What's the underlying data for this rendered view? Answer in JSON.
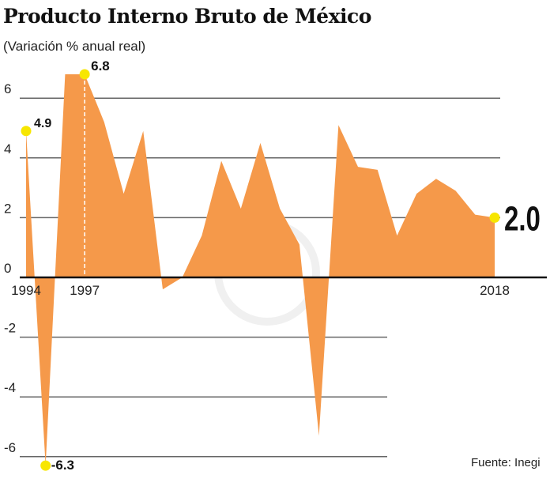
{
  "chart_data": {
    "type": "area",
    "title": "Producto Interno Bruto de México",
    "subtitle": "(Variación % anual real)",
    "source": "Fuente: Inegi",
    "x": [
      1994,
      1995,
      1996,
      1997,
      1998,
      1999,
      2000,
      2001,
      2002,
      2003,
      2004,
      2005,
      2006,
      2007,
      2008,
      2009,
      2010,
      2011,
      2012,
      2013,
      2014,
      2015,
      2016,
      2017,
      2018
    ],
    "values": [
      4.9,
      -6.3,
      6.8,
      6.8,
      5.2,
      2.8,
      4.9,
      -0.4,
      0.0,
      1.4,
      3.9,
      2.3,
      4.5,
      2.3,
      1.1,
      -5.3,
      5.1,
      3.7,
      3.6,
      1.4,
      2.8,
      3.3,
      2.9,
      2.1,
      2.0
    ],
    "x_tick_labels": [
      "1994",
      "1997",
      "2018"
    ],
    "y_ticks": [
      {
        "value": 6,
        "label": "6"
      },
      {
        "value": 4,
        "label": "4"
      },
      {
        "value": 2,
        "label": "2"
      },
      {
        "value": 0,
        "label": "0"
      },
      {
        "value": -2,
        "label": "-2"
      },
      {
        "value": -4,
        "label": "-4"
      },
      {
        "value": -6,
        "label": "-6"
      }
    ],
    "ylim": [
      -6.6,
      7.2
    ],
    "grid": true,
    "annotations": [
      {
        "year": 1994,
        "label": "4.9"
      },
      {
        "year": 1997,
        "label": "6.8"
      },
      {
        "year": 1995,
        "label": "-6.3"
      },
      {
        "year": 2018,
        "label": "2.0"
      }
    ],
    "colors": {
      "area": "#f5994a",
      "marker": "#f7e600",
      "grid": "#666666",
      "axis": "#111111"
    }
  }
}
